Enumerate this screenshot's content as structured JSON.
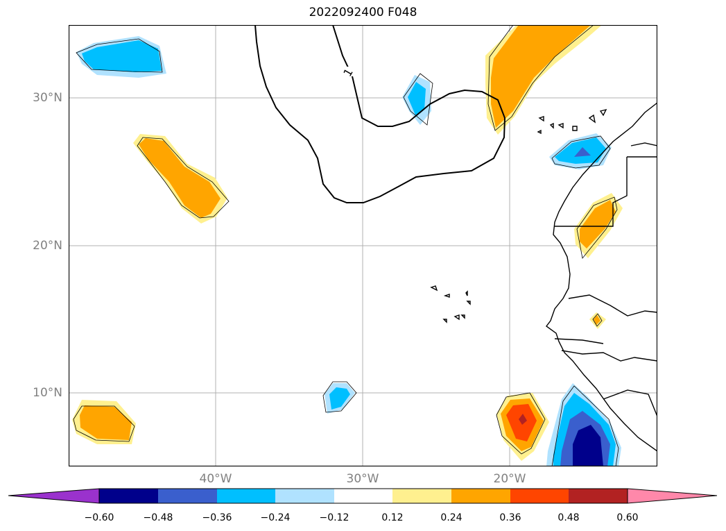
{
  "title": "2022092400 F048",
  "lat_labels": [
    "30°N",
    "20°N",
    "10°N"
  ],
  "lon_labels": [
    "40°W",
    "30°W",
    "20°W"
  ],
  "contour_label": "1",
  "colorbar": {
    "ticks": [
      "−0.60",
      "−0.48",
      "−0.36",
      "−0.24",
      "−0.12",
      "0.12",
      "0.24",
      "0.36",
      "0.48",
      "0.60"
    ],
    "colors": [
      "#9a32cd",
      "#00008b",
      "#3a5fcd",
      "#00bfff",
      "#b0e2ff",
      "#ffffff",
      "#fff08f",
      "#ffa500",
      "#ff4500",
      "#b22222",
      "#ff88aa"
    ]
  },
  "palette": {
    "neg_dark": "#00008b",
    "neg_mid": "#3a5fcd",
    "neg": "#00bfff",
    "neg_light": "#b0e2ff",
    "pos_light": "#fff08f",
    "pos": "#ffa500",
    "pos_strong": "#ff4500",
    "pos_darkest": "#b22222",
    "grid": "#b0b0b0"
  }
}
